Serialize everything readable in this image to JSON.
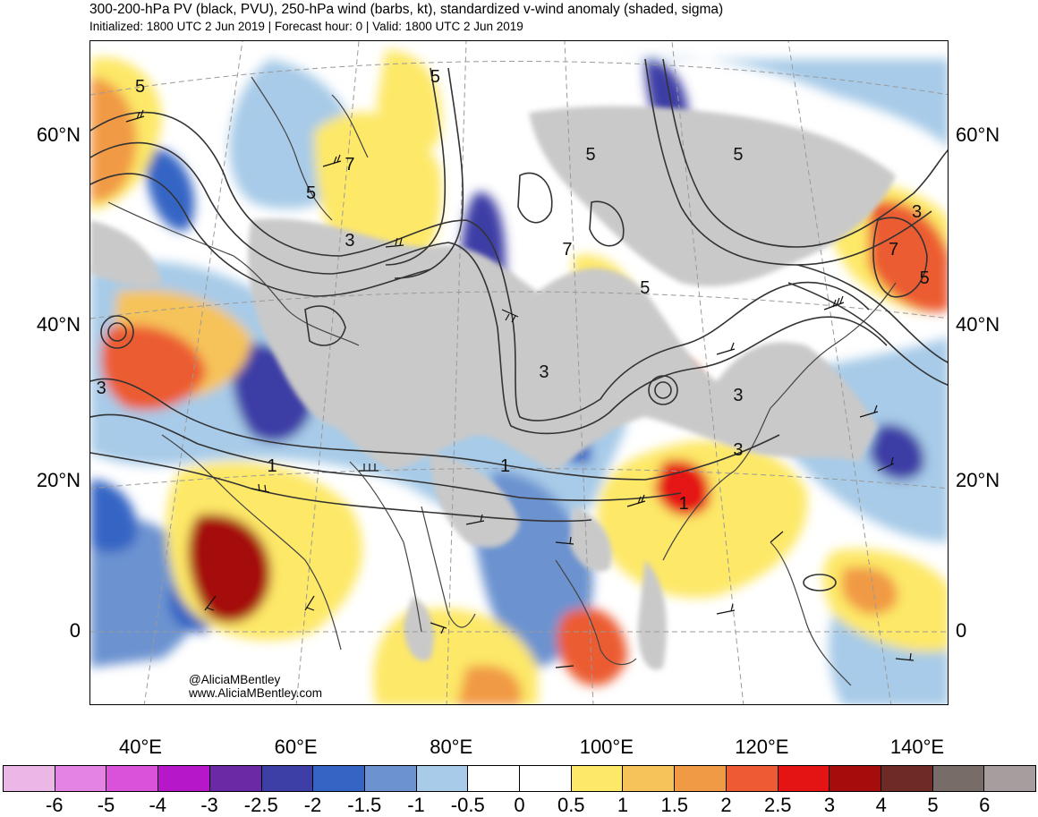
{
  "header": {
    "title": "300-200-hPa PV (black, PVU), 250-hPa wind (barbs, kt), standardized v-wind anomaly (shaded, sigma)",
    "subtitle": "Initialized: 1800 UTC 2 Jun 2019 | Forecast hour: 0 | Valid: 1800 UTC 2 Jun 2019"
  },
  "map": {
    "lat_labels": [
      {
        "text": "60°N",
        "lat": 60
      },
      {
        "text": "40°N",
        "lat": 40
      },
      {
        "text": "20°N",
        "lat": 20
      },
      {
        "text": "0",
        "lat": 0
      }
    ],
    "lon_labels": [
      {
        "text": "40°E",
        "lon": 40
      },
      {
        "text": "60°E",
        "lon": 60
      },
      {
        "text": "80°E",
        "lon": 80
      },
      {
        "text": "100°E",
        "lon": 100
      },
      {
        "text": "120°E",
        "lon": 120
      },
      {
        "text": "140°E",
        "lon": 140
      }
    ],
    "contour_labels": [
      {
        "text": "5",
        "lon": 40,
        "lat": 65
      },
      {
        "text": "5",
        "lon": 78,
        "lat": 66
      },
      {
        "text": "5",
        "lon": 98,
        "lat": 58
      },
      {
        "text": "5",
        "lon": 117,
        "lat": 58
      },
      {
        "text": "7",
        "lon": 67,
        "lat": 57
      },
      {
        "text": "5",
        "lon": 62,
        "lat": 54
      },
      {
        "text": "3",
        "lon": 67,
        "lat": 49
      },
      {
        "text": "7",
        "lon": 95,
        "lat": 48
      },
      {
        "text": "5",
        "lon": 105,
        "lat": 44
      },
      {
        "text": "3",
        "lon": 140,
        "lat": 52
      },
      {
        "text": "7",
        "lon": 137,
        "lat": 48
      },
      {
        "text": "5",
        "lon": 141,
        "lat": 45
      },
      {
        "text": "3",
        "lon": 35,
        "lat": 32
      },
      {
        "text": "3",
        "lon": 92,
        "lat": 34
      },
      {
        "text": "3",
        "lon": 117,
        "lat": 31
      },
      {
        "text": "3",
        "lon": 117,
        "lat": 24
      },
      {
        "text": "1",
        "lon": 87,
        "lat": 22
      },
      {
        "text": "1",
        "lon": 110,
        "lat": 17
      },
      {
        "text": "1",
        "lon": 57,
        "lat": 22
      }
    ],
    "credits": [
      "@AliciaMBentley",
      "www.AliciaMBentley.com"
    ]
  },
  "colorbar": {
    "colors": [
      "#eab7e6",
      "#e383e3",
      "#d952d9",
      "#b617c8",
      "#6a2aa6",
      "#3d3ea6",
      "#3565c4",
      "#6c93d0",
      "#a7cbe8",
      "#ffffff",
      "#ffffff",
      "#fde868",
      "#f6c35a",
      "#f19a45",
      "#ec5b33",
      "#e51414",
      "#a50d0d",
      "#6e2a25",
      "#786c68",
      "#a69e9e"
    ],
    "labels": [
      "-6",
      "-5",
      "-4",
      "-3",
      "-2.5",
      "-2",
      "-1.5",
      "-1",
      "-0.5",
      "0",
      "0.5",
      "1",
      "1.5",
      "2",
      "2.5",
      "3",
      "4",
      "5",
      "6"
    ]
  }
}
